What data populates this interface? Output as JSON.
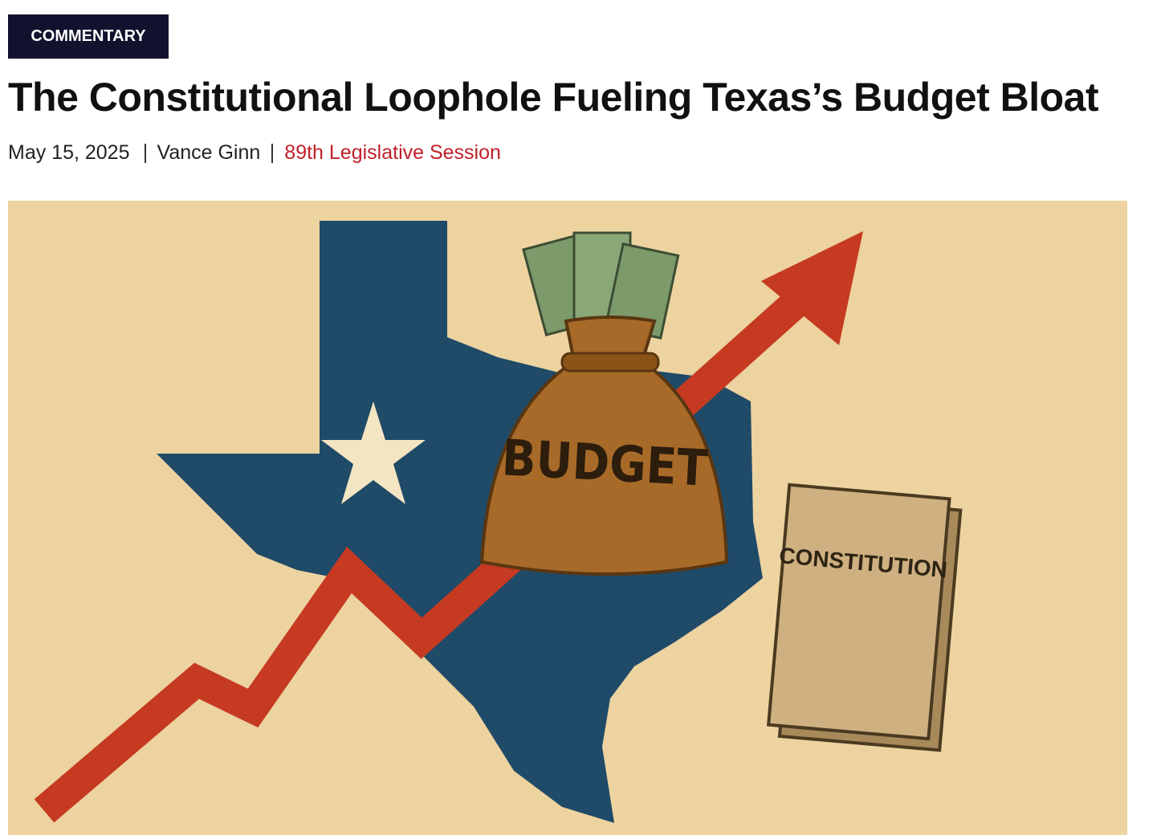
{
  "category": "COMMENTARY",
  "title": "The Constitutional Loophole Fueling Texas’s Budget Bloat",
  "meta": {
    "date": "May 15, 2025",
    "author": "Vance Ginn",
    "tag": "89th Legislative Session"
  },
  "image": {
    "bag_label": "BUDGET",
    "book_label": "CONSTITUTION"
  }
}
